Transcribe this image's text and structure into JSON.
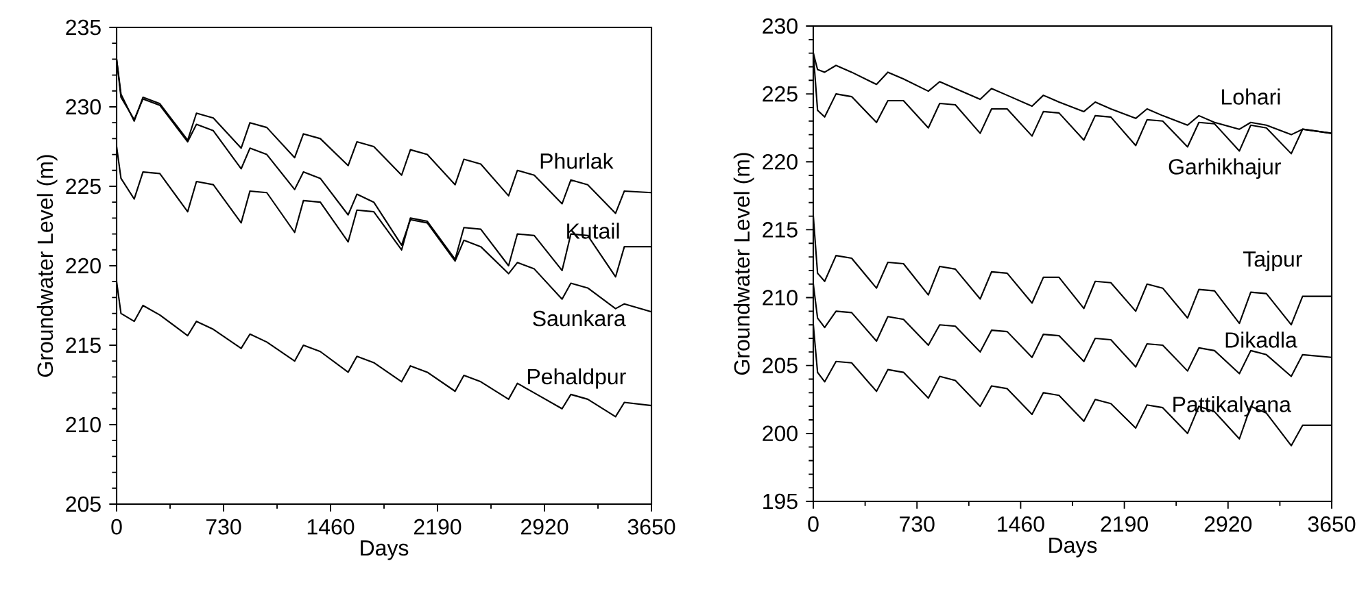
{
  "chart_data": [
    {
      "type": "line",
      "xlabel": "Days",
      "ylabel": "Groundwater Level (m)",
      "xlim": [
        0,
        3650
      ],
      "ylim": [
        205,
        235
      ],
      "xticks": [
        0,
        730,
        1460,
        2190,
        2920,
        3650
      ],
      "yticks": [
        205,
        210,
        215,
        220,
        225,
        230,
        235
      ],
      "marker": "none",
      "line_style": "solid",
      "x": [
        0,
        30,
        120,
        180,
        295,
        485,
        545,
        660,
        850,
        910,
        1025,
        1215,
        1275,
        1390,
        1580,
        1640,
        1755,
        1945,
        2005,
        2120,
        2310,
        2370,
        2485,
        2675,
        2735,
        2850,
        3040,
        3100,
        3215,
        3405,
        3465,
        3650
      ],
      "series": [
        {
          "name": "Phurlak",
          "color": "#000000",
          "values": [
            233.0,
            230.8,
            229.1,
            230.6,
            230.2,
            227.9,
            229.6,
            229.3,
            227.4,
            229.0,
            228.7,
            226.8,
            228.3,
            228.0,
            226.3,
            227.8,
            227.5,
            225.7,
            227.3,
            227.0,
            225.1,
            226.7,
            226.4,
            224.4,
            226.0,
            225.7,
            223.9,
            225.4,
            225.1,
            223.3,
            224.7,
            224.6
          ]
        },
        {
          "name": "Kutail",
          "color": "#000000",
          "values": [
            227.5,
            225.5,
            224.2,
            225.9,
            225.8,
            223.4,
            225.3,
            225.1,
            222.7,
            224.7,
            224.6,
            222.1,
            224.1,
            224.0,
            221.5,
            223.5,
            223.4,
            221.0,
            223.0,
            222.8,
            220.4,
            222.4,
            222.3,
            220.0,
            222.0,
            221.9,
            219.7,
            222.0,
            221.9,
            219.3,
            221.2,
            221.2
          ]
        },
        {
          "name": "Saunkara",
          "color": "#000000",
          "values": [
            233.0,
            230.6,
            229.2,
            230.5,
            230.1,
            227.8,
            228.9,
            228.5,
            226.1,
            227.4,
            227.0,
            224.8,
            225.9,
            225.5,
            223.2,
            224.5,
            224.0,
            221.3,
            222.9,
            222.7,
            220.3,
            221.6,
            221.2,
            219.5,
            220.2,
            219.8,
            217.9,
            218.9,
            218.6,
            217.3,
            217.6,
            217.1
          ]
        },
        {
          "name": "Pehaldpur",
          "color": "#000000",
          "values": [
            219.0,
            217.0,
            216.5,
            217.5,
            216.9,
            215.6,
            216.5,
            216.0,
            214.8,
            215.7,
            215.2,
            214.0,
            215.0,
            214.6,
            213.3,
            214.3,
            213.9,
            212.7,
            213.7,
            213.3,
            212.1,
            213.1,
            212.7,
            211.6,
            212.6,
            212.0,
            211.0,
            211.9,
            211.6,
            210.5,
            211.4,
            211.2
          ]
        }
      ]
    },
    {
      "type": "line",
      "xlabel": "Days",
      "ylabel": "Groundwater Level (m)",
      "xlim": [
        0,
        3650
      ],
      "ylim": [
        195,
        230
      ],
      "xticks": [
        0,
        730,
        1460,
        2190,
        2920,
        3650
      ],
      "yticks": [
        195,
        200,
        205,
        210,
        215,
        220,
        225,
        230
      ],
      "marker": "none",
      "line_style": "solid",
      "x": [
        0,
        30,
        80,
        160,
        270,
        445,
        525,
        635,
        810,
        890,
        1000,
        1175,
        1255,
        1365,
        1540,
        1620,
        1730,
        1905,
        1985,
        2095,
        2270,
        2350,
        2460,
        2635,
        2715,
        2825,
        3000,
        3080,
        3190,
        3365,
        3445,
        3650
      ],
      "series": [
        {
          "name": "Lohari",
          "color": "#000000",
          "values": [
            228.0,
            226.8,
            226.6,
            227.1,
            226.6,
            225.7,
            226.6,
            226.1,
            225.2,
            225.9,
            225.4,
            224.6,
            225.4,
            224.9,
            224.1,
            224.9,
            224.4,
            223.7,
            224.4,
            223.9,
            223.2,
            223.9,
            223.4,
            222.7,
            223.4,
            222.9,
            222.4,
            222.9,
            222.7,
            222.0,
            222.4,
            222.1
          ]
        },
        {
          "name": "Garhikhajur",
          "color": "#000000",
          "values": [
            228.0,
            223.8,
            223.3,
            225.0,
            224.8,
            222.9,
            224.5,
            224.5,
            222.5,
            224.3,
            224.2,
            222.1,
            223.9,
            223.9,
            221.9,
            223.7,
            223.6,
            221.6,
            223.4,
            223.3,
            221.2,
            223.1,
            223.0,
            221.1,
            222.9,
            222.8,
            220.8,
            222.7,
            222.5,
            220.6,
            222.4,
            222.1
          ]
        },
        {
          "name": "Tajpur",
          "color": "#000000",
          "values": [
            216.0,
            211.8,
            211.2,
            213.1,
            212.9,
            210.7,
            212.6,
            212.5,
            210.2,
            212.3,
            212.1,
            209.9,
            211.9,
            211.8,
            209.6,
            211.5,
            211.5,
            209.2,
            211.2,
            211.1,
            209.0,
            211.0,
            210.7,
            208.5,
            210.6,
            210.5,
            208.1,
            210.4,
            210.3,
            208.0,
            210.1,
            210.1
          ]
        },
        {
          "name": "Dikadla",
          "color": "#000000",
          "values": [
            211.0,
            208.5,
            207.8,
            209.0,
            208.9,
            206.8,
            208.6,
            208.4,
            206.5,
            208.0,
            207.9,
            206.0,
            207.6,
            207.5,
            205.6,
            207.3,
            207.2,
            205.3,
            207.0,
            206.9,
            204.9,
            206.6,
            206.5,
            204.6,
            206.3,
            206.1,
            204.4,
            206.1,
            205.8,
            204.2,
            205.8,
            205.6
          ]
        },
        {
          "name": "Pattikalyana",
          "color": "#000000",
          "values": [
            208.0,
            204.5,
            203.8,
            205.3,
            205.2,
            203.1,
            204.7,
            204.5,
            202.6,
            204.2,
            203.9,
            202.0,
            203.5,
            203.3,
            201.4,
            203.0,
            202.8,
            200.9,
            202.5,
            202.2,
            200.4,
            202.1,
            201.9,
            200.0,
            202.0,
            201.6,
            199.6,
            202.0,
            201.5,
            199.1,
            200.6,
            200.6
          ]
        }
      ]
    }
  ]
}
